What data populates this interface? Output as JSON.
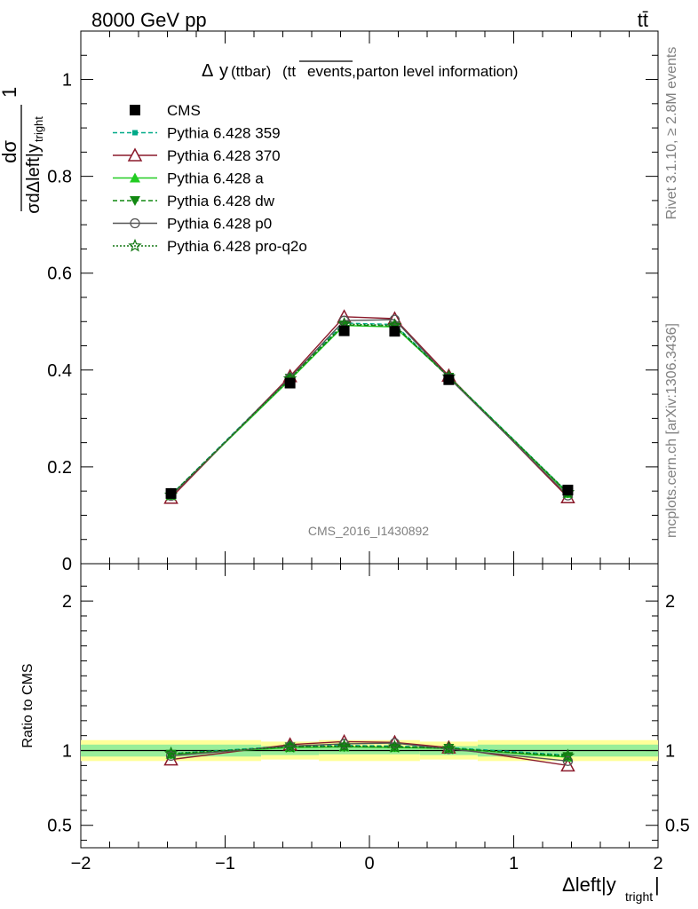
{
  "header": {
    "energy_label": "8000 GeV pp",
    "process_label": "tt̄"
  },
  "side": {
    "rivet_label": "Rivet 3.1.10, ≥ 2.8M events",
    "source_label": "mcplots.cern.ch [arXiv:1306.3436]"
  },
  "watermark": "CMS_2016_I1430892",
  "colors": {
    "cms": "#000000",
    "p359": "#00aa88",
    "p370": "#8b1a2b",
    "pa": "#22cc22",
    "pdw": "#118811",
    "pp0": "#555555",
    "pq2o": "#117711",
    "band_inner": "#99ee99",
    "band_outer": "#ffff99"
  },
  "chart_data": {
    "type": "line",
    "title": "Δ y(ttbar) (tt̅events, parton level information)",
    "title_parts": {
      "delta": "Δ",
      "y": "y",
      "ttbar": "(ttbar)",
      "tt": "(tt",
      "events": "events,",
      "rest": "parton level information)"
    },
    "ylabel_top": "1/σ dσ/dΔleft|y_tright|",
    "ylabel_parts": {
      "one": "1",
      "dsigma": "dσ",
      "sigma_d": "σdΔleft|y",
      "tright": "tright",
      "bar": "|"
    },
    "ylabel_ratio": "Ratio to CMS",
    "xlabel": "Δleft|y_tright|",
    "xlabel_parts": {
      "main": "Δleft|y",
      "sub": "tright",
      "bar": "|"
    },
    "xlim": [
      -2,
      2
    ],
    "ylim_top": [
      0,
      1.1
    ],
    "ylim_ratio": [
      0.35,
      2.25
    ],
    "x_ticks": [
      "−2",
      "−1",
      "0",
      "1",
      "2"
    ],
    "y_ticks_top": [
      "0",
      "0.2",
      "0.4",
      "0.6",
      "0.8",
      "1"
    ],
    "y_ticks_ratio": [
      "0.5",
      "1",
      "2"
    ],
    "bins": [
      [
        -2.0,
        -0.75
      ],
      [
        -0.75,
        -0.35
      ],
      [
        -0.35,
        0.0
      ],
      [
        0.0,
        0.35
      ],
      [
        0.35,
        0.75
      ],
      [
        0.75,
        2.0
      ]
    ],
    "x": [
      -1.375,
      -0.55,
      -0.175,
      0.175,
      0.55,
      1.375
    ],
    "legend_position": "top-left",
    "series": [
      {
        "name": "CMS",
        "key": "cms",
        "marker": "square",
        "style": "none",
        "values": [
          0.145,
          0.373,
          0.481,
          0.48,
          0.38,
          0.152
        ],
        "ratio": [
          1.0,
          1.0,
          1.0,
          1.0,
          1.0,
          1.0
        ]
      },
      {
        "name": "Pythia 6.428 359",
        "key": "p359",
        "marker": "smallsquare",
        "style": "dashed",
        "values": [
          0.142,
          0.385,
          0.497,
          0.494,
          0.387,
          0.147
        ],
        "ratio": [
          0.98,
          1.03,
          1.035,
          1.03,
          1.02,
          0.97
        ]
      },
      {
        "name": "Pythia 6.428 370",
        "key": "p370",
        "marker": "triangle-open",
        "style": "solid",
        "values": [
          0.136,
          0.387,
          0.51,
          0.506,
          0.388,
          0.137
        ],
        "ratio": [
          0.94,
          1.04,
          1.06,
          1.055,
          1.02,
          0.9
        ]
      },
      {
        "name": "Pythia 6.428 a",
        "key": "pa",
        "marker": "triangle-filled",
        "style": "solid",
        "values": [
          0.141,
          0.38,
          0.492,
          0.489,
          0.386,
          0.145
        ],
        "ratio": [
          0.975,
          1.02,
          1.025,
          1.02,
          1.015,
          0.955
        ]
      },
      {
        "name": "Pythia 6.428 dw",
        "key": "pdw",
        "marker": "triangle-down",
        "style": "dashed",
        "values": [
          0.141,
          0.383,
          0.493,
          0.491,
          0.385,
          0.146
        ],
        "ratio": [
          0.975,
          1.025,
          1.025,
          1.025,
          1.015,
          0.96
        ]
      },
      {
        "name": "Pythia 6.428 p0",
        "key": "pp0",
        "marker": "circle-open",
        "style": "solid",
        "values": [
          0.14,
          0.384,
          0.502,
          0.504,
          0.384,
          0.141
        ],
        "ratio": [
          0.965,
          1.03,
          1.045,
          1.05,
          1.01,
          0.93
        ]
      },
      {
        "name": "Pythia 6.428 pro-q2o",
        "key": "pq2o",
        "marker": "star",
        "style": "dotted",
        "values": [
          0.142,
          0.382,
          0.495,
          0.492,
          0.386,
          0.147
        ],
        "ratio": [
          0.98,
          1.025,
          1.03,
          1.025,
          1.015,
          0.965
        ]
      }
    ],
    "ratio_bands": {
      "inner": [
        [
          0.96,
          1.04
        ],
        [
          0.97,
          1.03
        ],
        [
          0.975,
          1.025
        ],
        [
          0.975,
          1.025
        ],
        [
          0.97,
          1.03
        ],
        [
          0.96,
          1.04
        ]
      ],
      "outer": [
        [
          0.93,
          1.07
        ],
        [
          0.94,
          1.06
        ],
        [
          0.93,
          1.07
        ],
        [
          0.93,
          1.07
        ],
        [
          0.94,
          1.06
        ],
        [
          0.93,
          1.07
        ]
      ]
    }
  }
}
